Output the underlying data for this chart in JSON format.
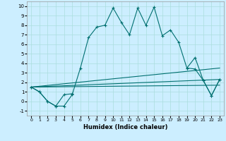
{
  "xlabel": "Humidex (Indice chaleur)",
  "x": [
    0,
    1,
    2,
    3,
    4,
    5,
    6,
    7,
    8,
    9,
    10,
    11,
    12,
    13,
    14,
    15,
    16,
    17,
    18,
    19,
    20,
    21,
    22,
    23
  ],
  "line1": [
    1.5,
    1.0,
    0.0,
    -0.5,
    -0.5,
    0.7,
    3.5,
    6.7,
    7.8,
    8.0,
    9.8,
    8.3,
    7.0,
    9.8,
    8.0,
    9.9,
    6.9,
    7.5,
    6.2,
    3.5,
    4.6,
    2.2,
    0.6,
    2.3
  ],
  "line2_seg1_x": [
    0,
    1,
    2,
    3,
    4,
    5
  ],
  "line2_seg1_y": [
    1.5,
    1.0,
    0.0,
    -0.5,
    0.7,
    0.8
  ],
  "line2_seg2_x": [
    19,
    20,
    21,
    22,
    23
  ],
  "line2_seg2_y": [
    3.5,
    3.4,
    2.2,
    0.6,
    2.3
  ],
  "line3_x": [
    0,
    23
  ],
  "line3_y": [
    1.5,
    3.5
  ],
  "line4_x": [
    0,
    23
  ],
  "line4_y": [
    1.5,
    2.3
  ],
  "line5_x": [
    0,
    23
  ],
  "line5_y": [
    1.5,
    1.7
  ],
  "ylim": [
    -1.5,
    10.5
  ],
  "xlim": [
    -0.5,
    23.5
  ],
  "yticks": [
    -1,
    0,
    1,
    2,
    3,
    4,
    5,
    6,
    7,
    8,
    9,
    10
  ],
  "xticks": [
    0,
    1,
    2,
    3,
    4,
    5,
    6,
    7,
    8,
    9,
    10,
    11,
    12,
    13,
    14,
    15,
    16,
    17,
    18,
    19,
    20,
    21,
    22,
    23
  ],
  "line_color": "#007070",
  "bg_color": "#cceeff",
  "grid_color": "#aadddd"
}
